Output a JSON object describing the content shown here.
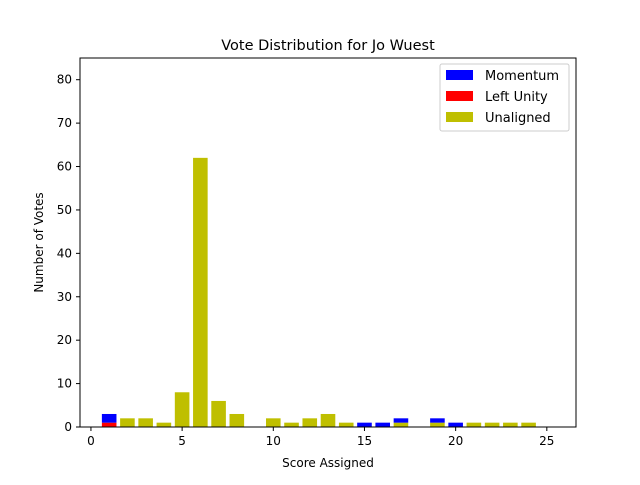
{
  "chart_data": {
    "type": "bar",
    "stacked": true,
    "title": "Vote Distribution for Jo Wuest",
    "xlabel": "Score Assigned",
    "ylabel": "Number of Votes",
    "xlim": [
      -0.6,
      26.6
    ],
    "ylim": [
      0,
      85
    ],
    "xticks": [
      0,
      5,
      10,
      15,
      20,
      25
    ],
    "yticks": [
      0,
      10,
      20,
      30,
      40,
      50,
      60,
      70,
      80
    ],
    "legend_position": "top-right",
    "x": [
      1,
      2,
      3,
      4,
      5,
      6,
      7,
      8,
      9,
      10,
      11,
      12,
      13,
      14,
      15,
      16,
      17,
      18,
      19,
      20,
      21,
      22,
      23,
      24,
      25
    ],
    "series": [
      {
        "name": "Unaligned",
        "color": "#bfbf00",
        "values": [
          0,
          2,
          2,
          1,
          8,
          62,
          6,
          3,
          0,
          2,
          1,
          2,
          3,
          1,
          0,
          0,
          1,
          0,
          1,
          0,
          1,
          1,
          1,
          1,
          0
        ]
      },
      {
        "name": "Left Unity",
        "color": "#ff0000",
        "values": [
          1,
          0,
          0,
          0,
          0,
          0,
          0,
          0,
          0,
          0,
          0,
          0,
          0,
          0,
          0,
          0,
          0,
          0,
          0,
          0,
          0,
          0,
          0,
          0,
          0
        ]
      },
      {
        "name": "Momentum",
        "color": "#0000ff",
        "values": [
          2,
          0,
          0,
          0,
          0,
          0,
          0,
          0,
          0,
          0,
          0,
          0,
          0,
          0,
          1,
          1,
          1,
          0,
          1,
          1,
          0,
          0,
          0,
          0,
          0
        ]
      }
    ],
    "legend_order": [
      "Momentum",
      "Left Unity",
      "Unaligned"
    ]
  }
}
